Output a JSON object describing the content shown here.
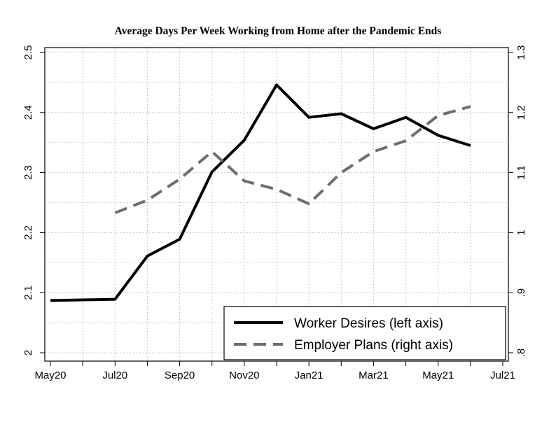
{
  "chart_data": {
    "type": "line",
    "title": "Average Days Per Week Working from Home after the Pandemic Ends",
    "x_tick_labels": [
      "May20",
      "Jul20",
      "Sep20",
      "Nov20",
      "Jan21",
      "Mar21",
      "May21",
      "Jul21"
    ],
    "x_month_count": 15,
    "y_left": {
      "range": [
        2.0,
        2.5
      ],
      "ticks": [
        "2",
        "2.1",
        "2.2",
        "2.3",
        "2.4",
        "2.5"
      ]
    },
    "y_right": {
      "range": [
        0.8,
        1.3
      ],
      "ticks": [
        ".8",
        ".9",
        "1",
        "1.1",
        "1.2",
        "1.3"
      ]
    },
    "grid": true,
    "legend_position": "bottom-right",
    "series": [
      {
        "name": "Worker Desires (left axis)",
        "axis": "left",
        "style": "solid",
        "color": "#000000",
        "x": [
          "May20",
          "Jun20",
          "Jul20",
          "Aug20",
          "Sep20",
          "Oct20",
          "Nov20",
          "Dec20",
          "Jan21",
          "Feb21",
          "Mar21",
          "Apr21",
          "May21",
          "Jun21"
        ],
        "values": [
          2.087,
          2.088,
          2.089,
          2.161,
          2.189,
          2.301,
          2.354,
          2.446,
          2.392,
          2.398,
          2.373,
          2.392,
          2.362,
          2.345
        ]
      },
      {
        "name": "Employer Plans (right axis)",
        "axis": "right",
        "style": "dashed",
        "color": "#6e6e6e",
        "x": [
          "Jul20",
          "Aug20",
          "Sep20",
          "Oct20",
          "Nov20",
          "Dec20",
          "Jan21",
          "Feb21",
          "Mar21",
          "Apr21",
          "May21",
          "Jun21"
        ],
        "values": [
          1.033,
          1.054,
          1.089,
          1.135,
          1.086,
          1.072,
          1.048,
          1.1,
          1.135,
          1.153,
          1.195,
          1.21
        ]
      }
    ]
  }
}
